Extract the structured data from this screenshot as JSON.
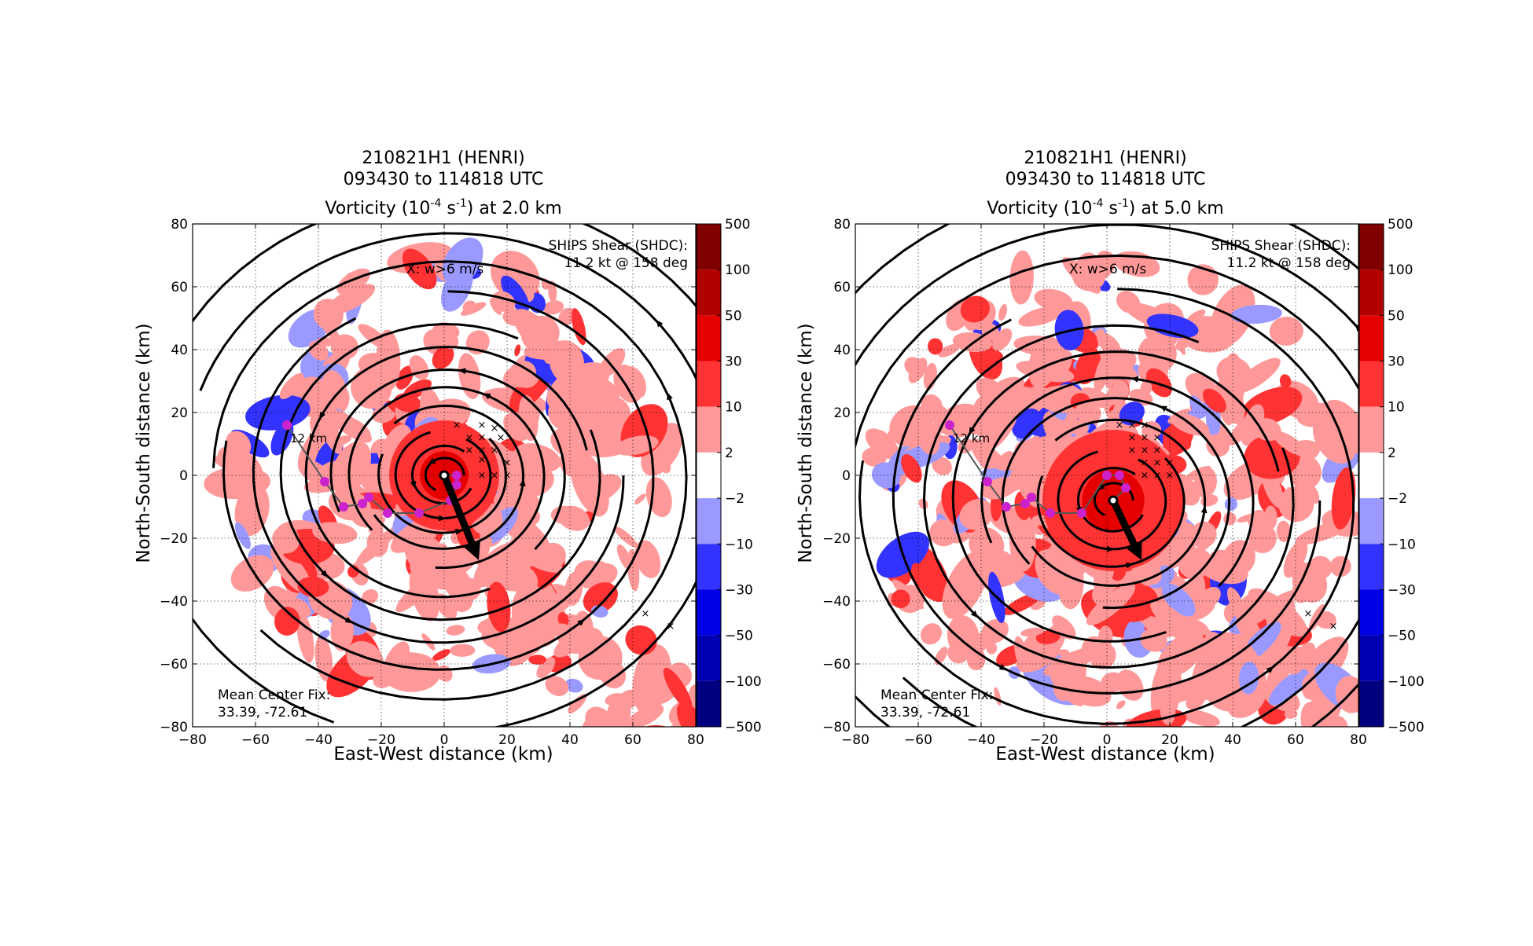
{
  "figure": {
    "panels": [
      {
        "title_lines": [
          "210821H1 (HENRI)",
          "093430 to 114818 UTC"
        ],
        "title_var": "Vorticity (10",
        "title_exp1": "-4",
        "title_mid": " s",
        "title_exp2": "-1",
        "title_end": ") at 2.0 km",
        "xlabel": "East-West distance (km)",
        "ylabel": "North-South distance (km)",
        "shear_label_1": "SHIPS Shear (SHDC):",
        "shear_label_2": "11.2 kt @ 158 deg",
        "x_marker_label": "X: w>6 m/s",
        "track_label": "12 km",
        "center_fix_1": "Mean Center Fix:",
        "center_fix_2": "33.39, -72.61"
      },
      {
        "title_lines": [
          "210821H1 (HENRI)",
          "093430 to 114818 UTC"
        ],
        "title_var": "Vorticity (10",
        "title_exp1": "-4",
        "title_mid": " s",
        "title_exp2": "-1",
        "title_end": ") at 5.0 km",
        "xlabel": "East-West distance (km)",
        "ylabel": "North-South distance (km)",
        "shear_label_1": "SHIPS Shear (SHDC):",
        "shear_label_2": "11.2 kt @ 158 deg",
        "x_marker_label": "X: w>6 m/s",
        "track_label": "12 km",
        "center_fix_1": "Mean Center Fix:",
        "center_fix_2": "33.39, -72.61"
      }
    ]
  },
  "chart_data": [
    {
      "type": "heatmap",
      "title": "210821H1 (HENRI) 093430 to 114818 UTC Vorticity (10^-4 s^-1) at 2.0 km",
      "xlabel": "East-West distance (km)",
      "ylabel": "North-South distance (km)",
      "xlim": [
        -80,
        80
      ],
      "ylim": [
        -80,
        80
      ],
      "xticks": [
        -80,
        -60,
        -40,
        -20,
        0,
        20,
        40,
        60,
        80
      ],
      "yticks": [
        -80,
        -60,
        -40,
        -20,
        0,
        20,
        40,
        60,
        80
      ],
      "grid": true,
      "colorbar": {
        "labels": [
          "500",
          "100",
          "50",
          "30",
          "10",
          "2",
          "−2",
          "−10",
          "−30",
          "−50",
          "−100",
          "−500"
        ],
        "colors": [
          "#800000",
          "#b20000",
          "#e50000",
          "#ff3333",
          "#ff9999",
          "#ffffff",
          "#9999ff",
          "#3333ff",
          "#0000e5",
          "#0000b2",
          "#000080"
        ]
      },
      "vortex_center": [
        0,
        0
      ],
      "shear_vector": {
        "from": [
          0,
          0
        ],
        "to": [
          11,
          -27
        ],
        "heading_deg": 158,
        "speed_kt": 11.2
      },
      "center_track": [
        [
          -50,
          16
        ],
        [
          -38,
          -2
        ],
        [
          -32,
          -10
        ],
        [
          -26,
          -9
        ],
        [
          -24,
          -7
        ],
        [
          -18,
          -12
        ],
        [
          -8,
          -12
        ],
        [
          2,
          -8
        ],
        [
          4,
          -3
        ],
        [
          4,
          0
        ],
        [
          0,
          0
        ]
      ],
      "updraft_markers": [
        [
          4,
          16
        ],
        [
          12,
          16
        ],
        [
          16,
          15
        ],
        [
          8,
          12
        ],
        [
          12,
          12
        ],
        [
          18,
          12
        ],
        [
          8,
          8
        ],
        [
          12,
          8
        ],
        [
          16,
          8
        ],
        [
          12,
          5
        ],
        [
          20,
          4
        ],
        [
          12,
          0
        ],
        [
          16,
          0
        ],
        [
          20,
          0
        ],
        [
          64,
          -44
        ],
        [
          72,
          -48
        ]
      ]
    },
    {
      "type": "heatmap",
      "title": "210821H1 (HENRI) 093430 to 114818 UTC Vorticity (10^-4 s^-1) at 5.0 km",
      "xlabel": "East-West distance (km)",
      "ylabel": "North-South distance (km)",
      "xlim": [
        -80,
        80
      ],
      "ylim": [
        -80,
        80
      ],
      "xticks": [
        -80,
        -60,
        -40,
        -20,
        0,
        20,
        40,
        60,
        80
      ],
      "yticks": [
        -80,
        -60,
        -40,
        -20,
        0,
        20,
        40,
        60,
        80
      ],
      "grid": true,
      "colorbar": {
        "labels": [
          "500",
          "100",
          "50",
          "30",
          "10",
          "2",
          "−2",
          "−10",
          "−30",
          "−50",
          "−100",
          "−500"
        ],
        "colors": [
          "#800000",
          "#b20000",
          "#e50000",
          "#ff3333",
          "#ff9999",
          "#ffffff",
          "#9999ff",
          "#3333ff",
          "#0000e5",
          "#0000b2",
          "#000080"
        ]
      },
      "vortex_center": [
        2,
        -8
      ],
      "shear_vector": {
        "from": [
          2,
          -8
        ],
        "to": [
          11,
          -27
        ],
        "heading_deg": 158,
        "speed_kt": 11.2
      },
      "center_track": [
        [
          -50,
          16
        ],
        [
          -38,
          -2
        ],
        [
          -32,
          -10
        ],
        [
          -26,
          -9
        ],
        [
          -24,
          -7
        ],
        [
          -18,
          -12
        ],
        [
          -8,
          -12
        ],
        [
          0,
          0
        ],
        [
          4,
          0
        ],
        [
          6,
          -4
        ],
        [
          2,
          -8
        ]
      ],
      "updraft_markers": [
        [
          4,
          16
        ],
        [
          8,
          16
        ],
        [
          12,
          16
        ],
        [
          8,
          12
        ],
        [
          12,
          12
        ],
        [
          16,
          12
        ],
        [
          8,
          8
        ],
        [
          12,
          8
        ],
        [
          16,
          8
        ],
        [
          12,
          4
        ],
        [
          16,
          4
        ],
        [
          20,
          4
        ],
        [
          12,
          0
        ],
        [
          16,
          0
        ],
        [
          20,
          0
        ],
        [
          64,
          -44
        ],
        [
          72,
          -48
        ]
      ]
    }
  ]
}
